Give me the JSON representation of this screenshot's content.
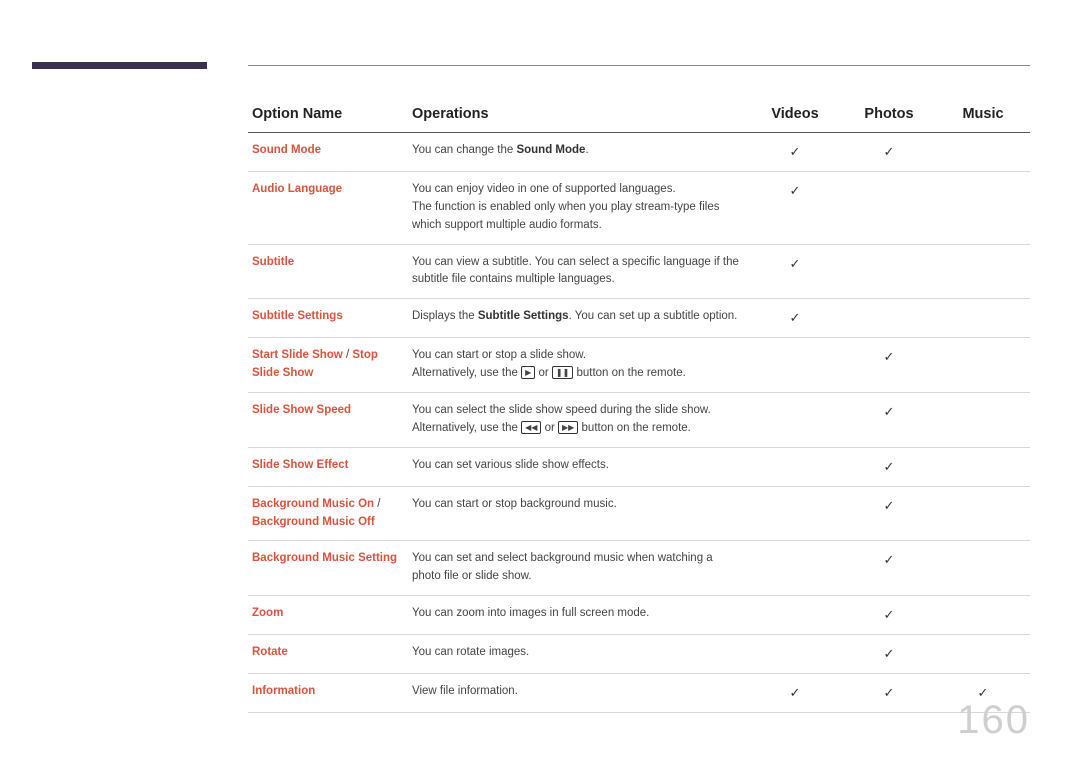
{
  "page_number": "160",
  "colors": {
    "side_bar": "#3a2f4f",
    "option_name": "#d9533c",
    "text": "#444444",
    "header_text": "#222222",
    "rule": "#888888",
    "row_rule": "#d8d8d8",
    "page_num": "#cfcfcf",
    "background": "#ffffff"
  },
  "headers": {
    "option_name": "Option Name",
    "operations": "Operations",
    "videos": "Videos",
    "photos": "Photos",
    "music": "Music"
  },
  "check": "✓",
  "rows": [
    {
      "name_parts": [
        {
          "t": "Sound Mode",
          "bold": true
        }
      ],
      "op_segments": [
        {
          "t": "You can change the "
        },
        {
          "t": "Sound Mode",
          "bold": true
        },
        {
          "t": "."
        }
      ],
      "videos": true,
      "photos": true,
      "music": false
    },
    {
      "name_parts": [
        {
          "t": "Audio Language",
          "bold": true
        }
      ],
      "op_segments": [
        {
          "t": "You can enjoy video in one of supported languages."
        },
        {
          "br": true
        },
        {
          "t": "The function is enabled only when you play stream-type files which support multiple audio formats."
        }
      ],
      "videos": true,
      "photos": false,
      "music": false
    },
    {
      "name_parts": [
        {
          "t": "Subtitle",
          "bold": true
        }
      ],
      "op_segments": [
        {
          "t": "You can view a subtitle. You can select a specific language if the subtitle file contains multiple languages."
        }
      ],
      "videos": true,
      "photos": false,
      "music": false
    },
    {
      "name_parts": [
        {
          "t": "Subtitle Settings",
          "bold": true
        }
      ],
      "op_segments": [
        {
          "t": "Displays the "
        },
        {
          "t": "Subtitle Settings",
          "bold": true
        },
        {
          "t": ". You can set up a subtitle option."
        }
      ],
      "videos": true,
      "photos": false,
      "music": false
    },
    {
      "name_parts": [
        {
          "t": "Start Slide Show",
          "bold": true
        },
        {
          "t": " / ",
          "sep": true
        },
        {
          "t": "Stop Slide Show",
          "bold": true
        }
      ],
      "op_segments": [
        {
          "t": "You can start or stop a slide show."
        },
        {
          "br": true
        },
        {
          "t": "Alternatively, use the "
        },
        {
          "btn": "▶"
        },
        {
          "t": " or "
        },
        {
          "btn": "❚❚"
        },
        {
          "t": " button on the remote."
        }
      ],
      "videos": false,
      "photos": true,
      "music": false
    },
    {
      "name_parts": [
        {
          "t": "Slide Show Speed",
          "bold": true
        }
      ],
      "op_segments": [
        {
          "t": "You can select the slide show speed during the slide show."
        },
        {
          "br": true
        },
        {
          "t": "Alternatively, use the "
        },
        {
          "btn": "◀◀"
        },
        {
          "t": " or "
        },
        {
          "btn": "▶▶"
        },
        {
          "t": " button on the remote."
        }
      ],
      "videos": false,
      "photos": true,
      "music": false
    },
    {
      "name_parts": [
        {
          "t": "Slide Show Effect",
          "bold": true
        }
      ],
      "op_segments": [
        {
          "t": "You can set various slide show effects."
        }
      ],
      "videos": false,
      "photos": true,
      "music": false
    },
    {
      "name_parts": [
        {
          "t": "Background Music On",
          "bold": true
        },
        {
          "t": " / ",
          "sep": true
        },
        {
          "t": "Background Music Off",
          "bold": true
        }
      ],
      "op_segments": [
        {
          "t": "You can start or stop background music."
        }
      ],
      "videos": false,
      "photos": true,
      "music": false
    },
    {
      "name_parts": [
        {
          "t": "Background Music Setting",
          "bold": true
        }
      ],
      "op_segments": [
        {
          "t": "You can set and select background music when watching a photo file or slide show."
        }
      ],
      "videos": false,
      "photos": true,
      "music": false
    },
    {
      "name_parts": [
        {
          "t": "Zoom",
          "bold": true
        }
      ],
      "op_segments": [
        {
          "t": "You can zoom into images in full screen mode."
        }
      ],
      "videos": false,
      "photos": true,
      "music": false
    },
    {
      "name_parts": [
        {
          "t": "Rotate",
          "bold": true
        }
      ],
      "op_segments": [
        {
          "t": "You can rotate images."
        }
      ],
      "videos": false,
      "photos": true,
      "music": false
    },
    {
      "name_parts": [
        {
          "t": "Information",
          "bold": true
        }
      ],
      "op_segments": [
        {
          "t": "View file information."
        }
      ],
      "videos": true,
      "photos": true,
      "music": true
    }
  ]
}
